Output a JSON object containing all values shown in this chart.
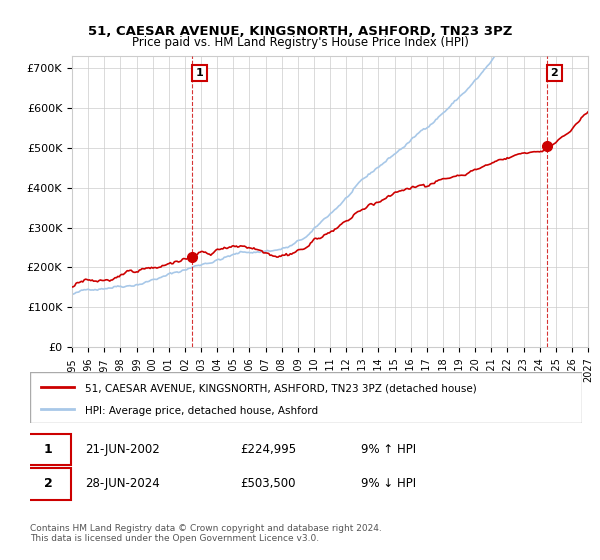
{
  "title": "51, CAESAR AVENUE, KINGSNORTH, ASHFORD, TN23 3PZ",
  "subtitle": "Price paid vs. HM Land Registry's House Price Index (HPI)",
  "xlabel": "",
  "ylabel": "",
  "ylim": [
    0,
    730000
  ],
  "yticks": [
    0,
    100000,
    200000,
    300000,
    400000,
    500000,
    600000,
    700000
  ],
  "ytick_labels": [
    "£0",
    "£100K",
    "£200K",
    "£300K",
    "£400K",
    "£500K",
    "£600K",
    "£700K"
  ],
  "sale1_date": 2002.47,
  "sale1_price": 224995,
  "sale1_label": "1",
  "sale2_date": 2024.48,
  "sale2_price": 503500,
  "sale2_label": "2",
  "legend_line1": "51, CAESAR AVENUE, KINGSNORTH, ASHFORD, TN23 3PZ (detached house)",
  "legend_line2": "HPI: Average price, detached house, Ashford",
  "table_row1": [
    "1",
    "21-JUN-2002",
    "£224,995",
    "9% ↑ HPI"
  ],
  "table_row2": [
    "2",
    "28-JUN-2024",
    "£503,500",
    "9% ↓ HPI"
  ],
  "footnote": "Contains HM Land Registry data © Crown copyright and database right 2024.\nThis data is licensed under the Open Government Licence v3.0.",
  "hpi_color": "#a8c8e8",
  "price_color": "#cc0000",
  "vline_color": "#cc0000",
  "background_color": "#ffffff",
  "grid_color": "#cccccc"
}
